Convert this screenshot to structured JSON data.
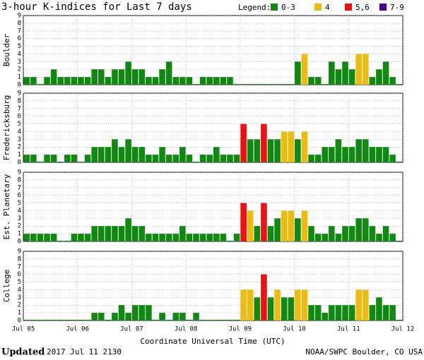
{
  "title": "3-hour K-indices for Last 7 days",
  "legend_title": "Legend:",
  "legend": [
    {
      "name": "0-3",
      "color": "#118811"
    },
    {
      "name": "4",
      "color": "#eebb11"
    },
    {
      "name": "5,6",
      "color": "#ee1111"
    },
    {
      "name": "7-9",
      "color": "#440099"
    }
  ],
  "chart_data": [
    {
      "type": "bar",
      "ylabel": "Boulder",
      "ylim": [
        0,
        9
      ],
      "yticks": [
        0,
        1,
        2,
        3,
        4,
        5,
        6,
        7,
        8,
        9
      ],
      "xlim": [
        0,
        56
      ],
      "grid": true,
      "values": [
        1,
        1,
        0,
        1,
        2,
        1,
        1,
        1,
        1,
        1,
        2,
        2,
        1,
        2,
        2,
        3,
        2,
        2,
        1,
        1,
        2,
        3,
        1,
        1,
        1,
        0,
        1,
        1,
        1,
        1,
        1,
        0,
        0,
        0,
        0,
        0,
        0,
        0,
        0,
        0,
        3,
        4,
        1,
        1,
        0,
        3,
        2,
        3,
        2,
        4,
        4,
        1,
        2,
        3,
        1,
        0
      ]
    },
    {
      "type": "bar",
      "ylabel": "Fredericksburg",
      "ylim": [
        0,
        9
      ],
      "yticks": [
        0,
        1,
        2,
        3,
        4,
        5,
        6,
        7,
        8,
        9
      ],
      "xlim": [
        0,
        56
      ],
      "grid": true,
      "values": [
        1,
        1,
        0,
        1,
        1,
        0,
        1,
        1,
        0,
        1,
        2,
        2,
        2,
        3,
        2,
        3,
        2,
        2,
        1,
        1,
        2,
        1,
        1,
        2,
        1,
        0,
        1,
        1,
        2,
        1,
        1,
        1,
        5,
        3,
        3,
        5,
        3,
        3,
        4,
        4,
        3,
        4,
        1,
        1,
        2,
        2,
        3,
        2,
        2,
        3,
        3,
        2,
        2,
        2,
        1,
        0
      ]
    },
    {
      "type": "bar",
      "ylabel": "Est. Planetary",
      "ylim": [
        0,
        9
      ],
      "yticks": [
        0,
        1,
        2,
        3,
        4,
        5,
        6,
        7,
        8,
        9
      ],
      "xlim": [
        0,
        56
      ],
      "grid": true,
      "values": [
        1,
        1,
        1,
        1,
        1,
        0,
        0,
        1,
        1,
        1,
        2,
        2,
        2,
        2,
        2,
        3,
        2,
        2,
        1,
        1,
        1,
        1,
        1,
        2,
        1,
        1,
        1,
        1,
        1,
        1,
        0,
        1,
        5,
        4,
        2,
        5,
        2,
        3,
        4,
        4,
        3,
        4,
        2,
        1,
        1,
        2,
        1,
        2,
        2,
        3,
        3,
        2,
        1,
        2,
        1,
        0
      ]
    },
    {
      "type": "bar",
      "ylabel": "College",
      "ylim": [
        0,
        9
      ],
      "yticks": [
        0,
        1,
        2,
        3,
        4,
        5,
        6,
        7,
        8,
        9
      ],
      "xlim": [
        0,
        56
      ],
      "grid": true,
      "values": [
        0,
        0,
        0,
        0,
        0,
        0,
        0,
        0,
        0,
        0,
        1,
        1,
        0,
        1,
        2,
        1,
        2,
        2,
        2,
        0,
        1,
        0,
        1,
        1,
        0,
        1,
        0,
        0,
        0,
        0,
        0,
        0,
        4,
        4,
        3,
        6,
        3,
        4,
        3,
        3,
        4,
        4,
        2,
        2,
        1,
        2,
        2,
        2,
        2,
        4,
        4,
        2,
        3,
        2,
        2,
        0
      ],
      "xticks": [
        {
          "value": 0,
          "label": "Jul 05"
        },
        {
          "value": 8,
          "label": "Jul 06"
        },
        {
          "value": 16,
          "label": "Jul 07"
        },
        {
          "value": 24,
          "label": "Jul 08"
        },
        {
          "value": 32,
          "label": "Jul 09"
        },
        {
          "value": 40,
          "label": "Jul 10"
        },
        {
          "value": 48,
          "label": "Jul 11"
        },
        {
          "value": 56,
          "label": "Jul 12"
        }
      ],
      "xlabel": "Coordinate Universal Time (UTC)"
    }
  ],
  "footer": {
    "updated_label": "Updated",
    "updated": "2017 Jul 11 2130",
    "source": "NOAA/SWPC Boulder, CO USA"
  }
}
